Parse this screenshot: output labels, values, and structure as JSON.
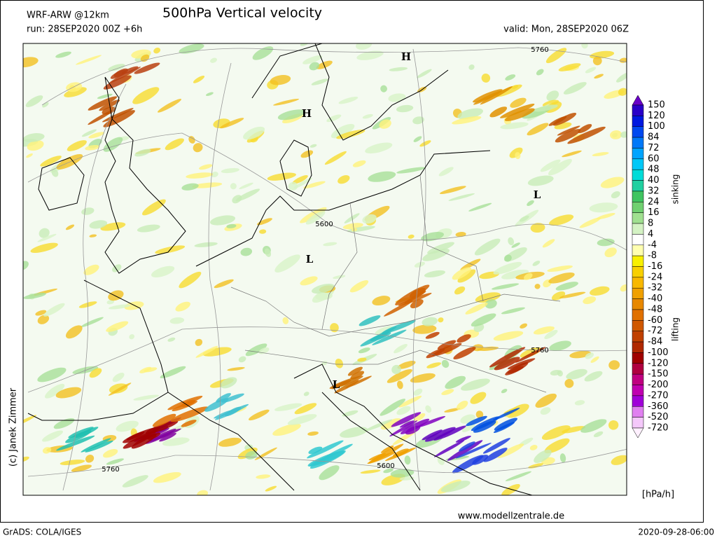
{
  "header": {
    "model": "WRF-ARW @12km",
    "title": "500hPa Vertical velocity",
    "run": "run: 28SEP2020 00Z +6h",
    "valid": "valid: Mon, 28SEP2020 06Z"
  },
  "map": {
    "pressure_centers": [
      "H",
      "H",
      "L",
      "L",
      "L"
    ],
    "contour_labels": [
      "5760",
      "5600",
      "5760",
      "5760",
      "5600"
    ]
  },
  "colorbar": {
    "ticks": [
      150,
      120,
      100,
      84,
      72,
      60,
      48,
      40,
      32,
      24,
      16,
      8,
      4,
      -4,
      -8,
      -16,
      -24,
      -32,
      -40,
      -48,
      -60,
      -72,
      -84,
      -100,
      -120,
      -150,
      -200,
      -270,
      -360,
      -520,
      -720
    ],
    "above_color": "#6a00c8",
    "below_color": "#fff0ff",
    "colors": [
      "#2a00c8",
      "#0018e0",
      "#0048f0",
      "#0078f8",
      "#00a4ff",
      "#00c8f8",
      "#00dcd8",
      "#20d0a0",
      "#40c460",
      "#70d070",
      "#a0e090",
      "#d4f2c4",
      "#ffffff",
      "#ffffb0",
      "#f8f000",
      "#f8d000",
      "#f8b800",
      "#f0a000",
      "#e88800",
      "#e07000",
      "#d05800",
      "#c04000",
      "#b02800",
      "#a00000",
      "#b00040",
      "#c00080",
      "#c000b0",
      "#a000d8",
      "#e080f0",
      "#f4c8fa"
    ],
    "upper_label": "sinking",
    "lower_label": "lifting",
    "unit": "[hPa/h]"
  },
  "footer": {
    "credit": "(c) Janek Zimmer",
    "url": "www.modellzentrale.de",
    "software": "GrADS: COLA/IGES",
    "timestamp": "2020-09-28-06:00"
  }
}
